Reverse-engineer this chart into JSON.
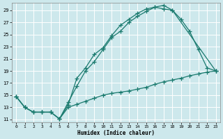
{
  "xlabel": "Humidex (Indice chaleur)",
  "bg_color": "#cde8ec",
  "grid_color": "#b8d8dc",
  "line_color": "#1a7a6e",
  "xlim": [
    -0.5,
    23.5
  ],
  "ylim": [
    10.5,
    30.2
  ],
  "xticks": [
    0,
    1,
    2,
    3,
    4,
    5,
    6,
    7,
    8,
    9,
    10,
    11,
    12,
    13,
    14,
    15,
    16,
    17,
    18,
    19,
    20,
    21,
    22,
    23
  ],
  "yticks": [
    11,
    13,
    15,
    17,
    19,
    21,
    23,
    25,
    27,
    29
  ],
  "curve_high_x": [
    0,
    1,
    2,
    3,
    4,
    5,
    6,
    7,
    8,
    9,
    10,
    11,
    12,
    13,
    14,
    15,
    16,
    17,
    18,
    23
  ],
  "curve_high_y": [
    14.8,
    13.0,
    12.2,
    12.2,
    12.2,
    11.1,
    13.4,
    17.8,
    19.5,
    21.7,
    22.8,
    24.8,
    26.5,
    27.5,
    28.5,
    29.2,
    29.5,
    29.2,
    29.0,
    19.0
  ],
  "curve_mid_x": [
    0,
    1,
    2,
    3,
    4,
    5,
    6,
    7,
    8,
    9,
    10,
    11,
    12,
    13,
    14,
    15,
    16,
    17,
    18,
    19,
    20,
    21,
    22,
    23
  ],
  "curve_mid_y": [
    14.8,
    13.0,
    12.2,
    12.2,
    12.2,
    11.1,
    13.8,
    16.5,
    19.0,
    20.5,
    22.5,
    24.5,
    25.5,
    27.0,
    28.0,
    28.8,
    29.5,
    29.8,
    29.0,
    27.5,
    25.5,
    22.5,
    19.5,
    19.0
  ],
  "curve_low_x": [
    0,
    1,
    2,
    3,
    4,
    5,
    6,
    7,
    8,
    9,
    10,
    11,
    12,
    13,
    14,
    15,
    16,
    17,
    18,
    19,
    20,
    21,
    22,
    23
  ],
  "curve_low_y": [
    14.8,
    13.0,
    12.2,
    12.2,
    12.2,
    11.1,
    13.0,
    13.5,
    14.0,
    14.5,
    15.0,
    15.3,
    15.5,
    15.7,
    16.0,
    16.3,
    16.8,
    17.2,
    17.5,
    17.8,
    18.2,
    18.5,
    18.8,
    19.0
  ]
}
